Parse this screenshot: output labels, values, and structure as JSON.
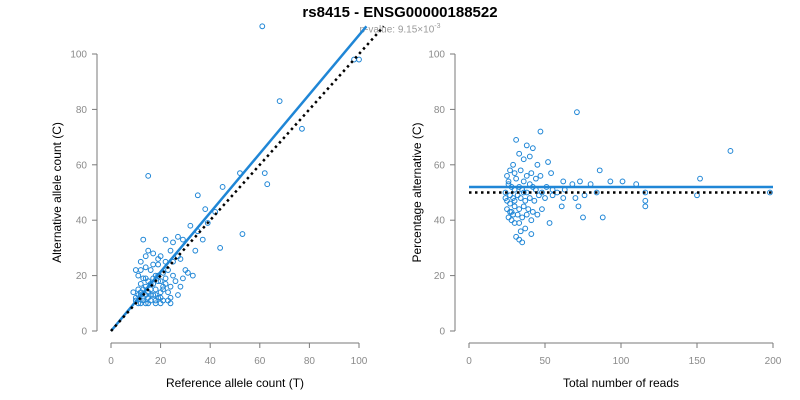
{
  "title": "rs8415 - ENSG00000188522",
  "subtitle": {
    "prefix": "p-value: 9.15×10",
    "exponent": "-3"
  },
  "colors": {
    "points": "#1f86d6",
    "fit": "#1f86d6",
    "reference": "#000000",
    "axis": "#7a7a7a"
  },
  "chart_data": [
    {
      "type": "scatter",
      "xlabel": "Reference allele count (T)",
      "ylabel": "Alternative allele count (C)",
      "xlim": [
        0,
        100
      ],
      "ylim": [
        0,
        110
      ],
      "xticks": [
        0,
        20,
        40,
        60,
        80,
        100
      ],
      "yticks": [
        0,
        20,
        40,
        60,
        80,
        100
      ],
      "x_tick_labels": [
        "0",
        "20",
        "40",
        "60",
        "80",
        "100"
      ],
      "y_tick_labels": [
        "0",
        "20",
        "40",
        "60",
        "80",
        "100"
      ],
      "fit_line": {
        "x": [
          0,
          103
        ],
        "y": [
          0,
          110
        ]
      },
      "reference_line": {
        "x": [
          0,
          110
        ],
        "y": [
          0,
          110
        ]
      },
      "points": [
        [
          61,
          110
        ],
        [
          100,
          98
        ],
        [
          98,
          98
        ],
        [
          68,
          83
        ],
        [
          77,
          73
        ],
        [
          15,
          56
        ],
        [
          52,
          57
        ],
        [
          62,
          57
        ],
        [
          63,
          53
        ],
        [
          45,
          52
        ],
        [
          35,
          49
        ],
        [
          38,
          44
        ],
        [
          42,
          43
        ],
        [
          39,
          39
        ],
        [
          32,
          38
        ],
        [
          35,
          36
        ],
        [
          53,
          35
        ],
        [
          22,
          33
        ],
        [
          13,
          33
        ],
        [
          25,
          32
        ],
        [
          37,
          33
        ],
        [
          44,
          30
        ],
        [
          34,
          29
        ],
        [
          27,
          34
        ],
        [
          29,
          33
        ],
        [
          24,
          29
        ],
        [
          27,
          27
        ],
        [
          28,
          26
        ],
        [
          25,
          25
        ],
        [
          22,
          25
        ],
        [
          20,
          27
        ],
        [
          15,
          29
        ],
        [
          14,
          27
        ],
        [
          12,
          25
        ],
        [
          17,
          24
        ],
        [
          19,
          26
        ],
        [
          23,
          22
        ],
        [
          30,
          22
        ],
        [
          33,
          20
        ],
        [
          29,
          19
        ],
        [
          14,
          23
        ],
        [
          10,
          22
        ],
        [
          16,
          22
        ],
        [
          21,
          21
        ],
        [
          18,
          20
        ],
        [
          19,
          18
        ],
        [
          22,
          17
        ],
        [
          24,
          16
        ],
        [
          28,
          16
        ],
        [
          27,
          13
        ],
        [
          26,
          18
        ],
        [
          11,
          20
        ],
        [
          13,
          19
        ],
        [
          15,
          18
        ],
        [
          17,
          17
        ],
        [
          12,
          17
        ],
        [
          14,
          16
        ],
        [
          16,
          15
        ],
        [
          18,
          15
        ],
        [
          20,
          14
        ],
        [
          12,
          14
        ],
        [
          11,
          13
        ],
        [
          13,
          12
        ],
        [
          15,
          12
        ],
        [
          17,
          13
        ],
        [
          19,
          12
        ],
        [
          21,
          11
        ],
        [
          23,
          11
        ],
        [
          24,
          10
        ],
        [
          10,
          11
        ],
        [
          12,
          10
        ],
        [
          14,
          10
        ],
        [
          16,
          11
        ],
        [
          18,
          10
        ],
        [
          11,
          15
        ],
        [
          13,
          15
        ],
        [
          15,
          14
        ],
        [
          17,
          19
        ],
        [
          19,
          20
        ],
        [
          20,
          18
        ],
        [
          22,
          19
        ],
        [
          25,
          20
        ],
        [
          31,
          21
        ],
        [
          9,
          14
        ],
        [
          10,
          12
        ],
        [
          12,
          13
        ],
        [
          14,
          13
        ],
        [
          16,
          13
        ],
        [
          18,
          13
        ],
        [
          20,
          12
        ],
        [
          21,
          15
        ],
        [
          23,
          14
        ],
        [
          16,
          17
        ],
        [
          14,
          19
        ],
        [
          12,
          22
        ],
        [
          17,
          28
        ],
        [
          19,
          24
        ],
        [
          21,
          16
        ],
        [
          24,
          12
        ],
        [
          13,
          11
        ],
        [
          11,
          10
        ],
        [
          15,
          10
        ],
        [
          18,
          11
        ],
        [
          20,
          10
        ]
      ]
    },
    {
      "type": "scatter",
      "xlabel": "Total number of reads",
      "ylabel": "Percentage alternative (C)",
      "xlim": [
        0,
        200
      ],
      "ylim": [
        0,
        100
      ],
      "xticks": [
        0,
        50,
        100,
        150,
        200
      ],
      "yticks": [
        0,
        20,
        40,
        60,
        80,
        100
      ],
      "x_tick_labels": [
        "0",
        "50",
        "100",
        "150",
        "200"
      ],
      "y_tick_labels": [
        "0",
        "20",
        "40",
        "60",
        "80",
        "100"
      ],
      "fit_line": {
        "x": [
          0,
          200
        ],
        "y": [
          52,
          52
        ]
      },
      "reference_line": {
        "x": [
          0,
          200
        ],
        "y": [
          50,
          50
        ]
      },
      "points": [
        [
          71,
          79
        ],
        [
          47,
          72
        ],
        [
          172,
          65
        ],
        [
          31,
          69
        ],
        [
          38,
          67
        ],
        [
          42,
          66
        ],
        [
          40,
          63
        ],
        [
          36,
          62
        ],
        [
          33,
          64
        ],
        [
          52,
          61
        ],
        [
          45,
          60
        ],
        [
          29,
          60
        ],
        [
          27,
          58
        ],
        [
          34,
          58
        ],
        [
          41,
          57
        ],
        [
          47,
          56
        ],
        [
          86,
          58
        ],
        [
          54,
          57
        ],
        [
          25,
          56
        ],
        [
          31,
          55
        ],
        [
          36,
          54
        ],
        [
          62,
          54
        ],
        [
          68,
          53
        ],
        [
          73,
          54
        ],
        [
          80,
          53
        ],
        [
          93,
          54
        ],
        [
          101,
          54
        ],
        [
          110,
          53
        ],
        [
          152,
          55
        ],
        [
          26,
          53
        ],
        [
          28,
          52
        ],
        [
          30,
          51
        ],
        [
          33,
          52
        ],
        [
          35,
          51
        ],
        [
          38,
          50
        ],
        [
          42,
          52
        ],
        [
          44,
          51
        ],
        [
          48,
          50
        ],
        [
          51,
          52
        ],
        [
          55,
          51
        ],
        [
          58,
          50
        ],
        [
          63,
          51
        ],
        [
          24,
          50
        ],
        [
          27,
          49
        ],
        [
          29,
          48
        ],
        [
          32,
          49
        ],
        [
          34,
          48
        ],
        [
          37,
          47
        ],
        [
          40,
          48
        ],
        [
          43,
          47
        ],
        [
          46,
          49
        ],
        [
          50,
          48
        ],
        [
          55,
          49
        ],
        [
          62,
          48
        ],
        [
          70,
          48
        ],
        [
          76,
          49
        ],
        [
          84,
          50
        ],
        [
          116,
          50
        ],
        [
          150,
          49
        ],
        [
          198,
          50
        ],
        [
          116,
          47
        ],
        [
          116,
          45
        ],
        [
          61,
          45
        ],
        [
          72,
          45
        ],
        [
          75,
          41
        ],
        [
          88,
          41
        ],
        [
          25,
          47
        ],
        [
          27,
          46
        ],
        [
          30,
          45
        ],
        [
          33,
          44
        ],
        [
          36,
          45
        ],
        [
          39,
          44
        ],
        [
          42,
          43
        ],
        [
          45,
          42
        ],
        [
          48,
          44
        ],
        [
          25,
          44
        ],
        [
          27,
          43
        ],
        [
          29,
          42
        ],
        [
          32,
          42
        ],
        [
          35,
          41
        ],
        [
          38,
          42
        ],
        [
          41,
          40
        ],
        [
          26,
          41
        ],
        [
          28,
          40
        ],
        [
          30,
          39
        ],
        [
          33,
          39
        ],
        [
          37,
          37
        ],
        [
          41,
          35
        ],
        [
          53,
          39
        ],
        [
          31,
          34
        ],
        [
          33,
          33
        ],
        [
          35,
          32
        ],
        [
          34,
          36
        ],
        [
          28,
          43
        ],
        [
          30,
          47
        ],
        [
          24,
          48
        ],
        [
          36,
          50
        ],
        [
          40,
          53
        ],
        [
          44,
          55
        ],
        [
          38,
          56
        ],
        [
          30,
          57
        ],
        [
          26,
          54
        ]
      ]
    }
  ]
}
